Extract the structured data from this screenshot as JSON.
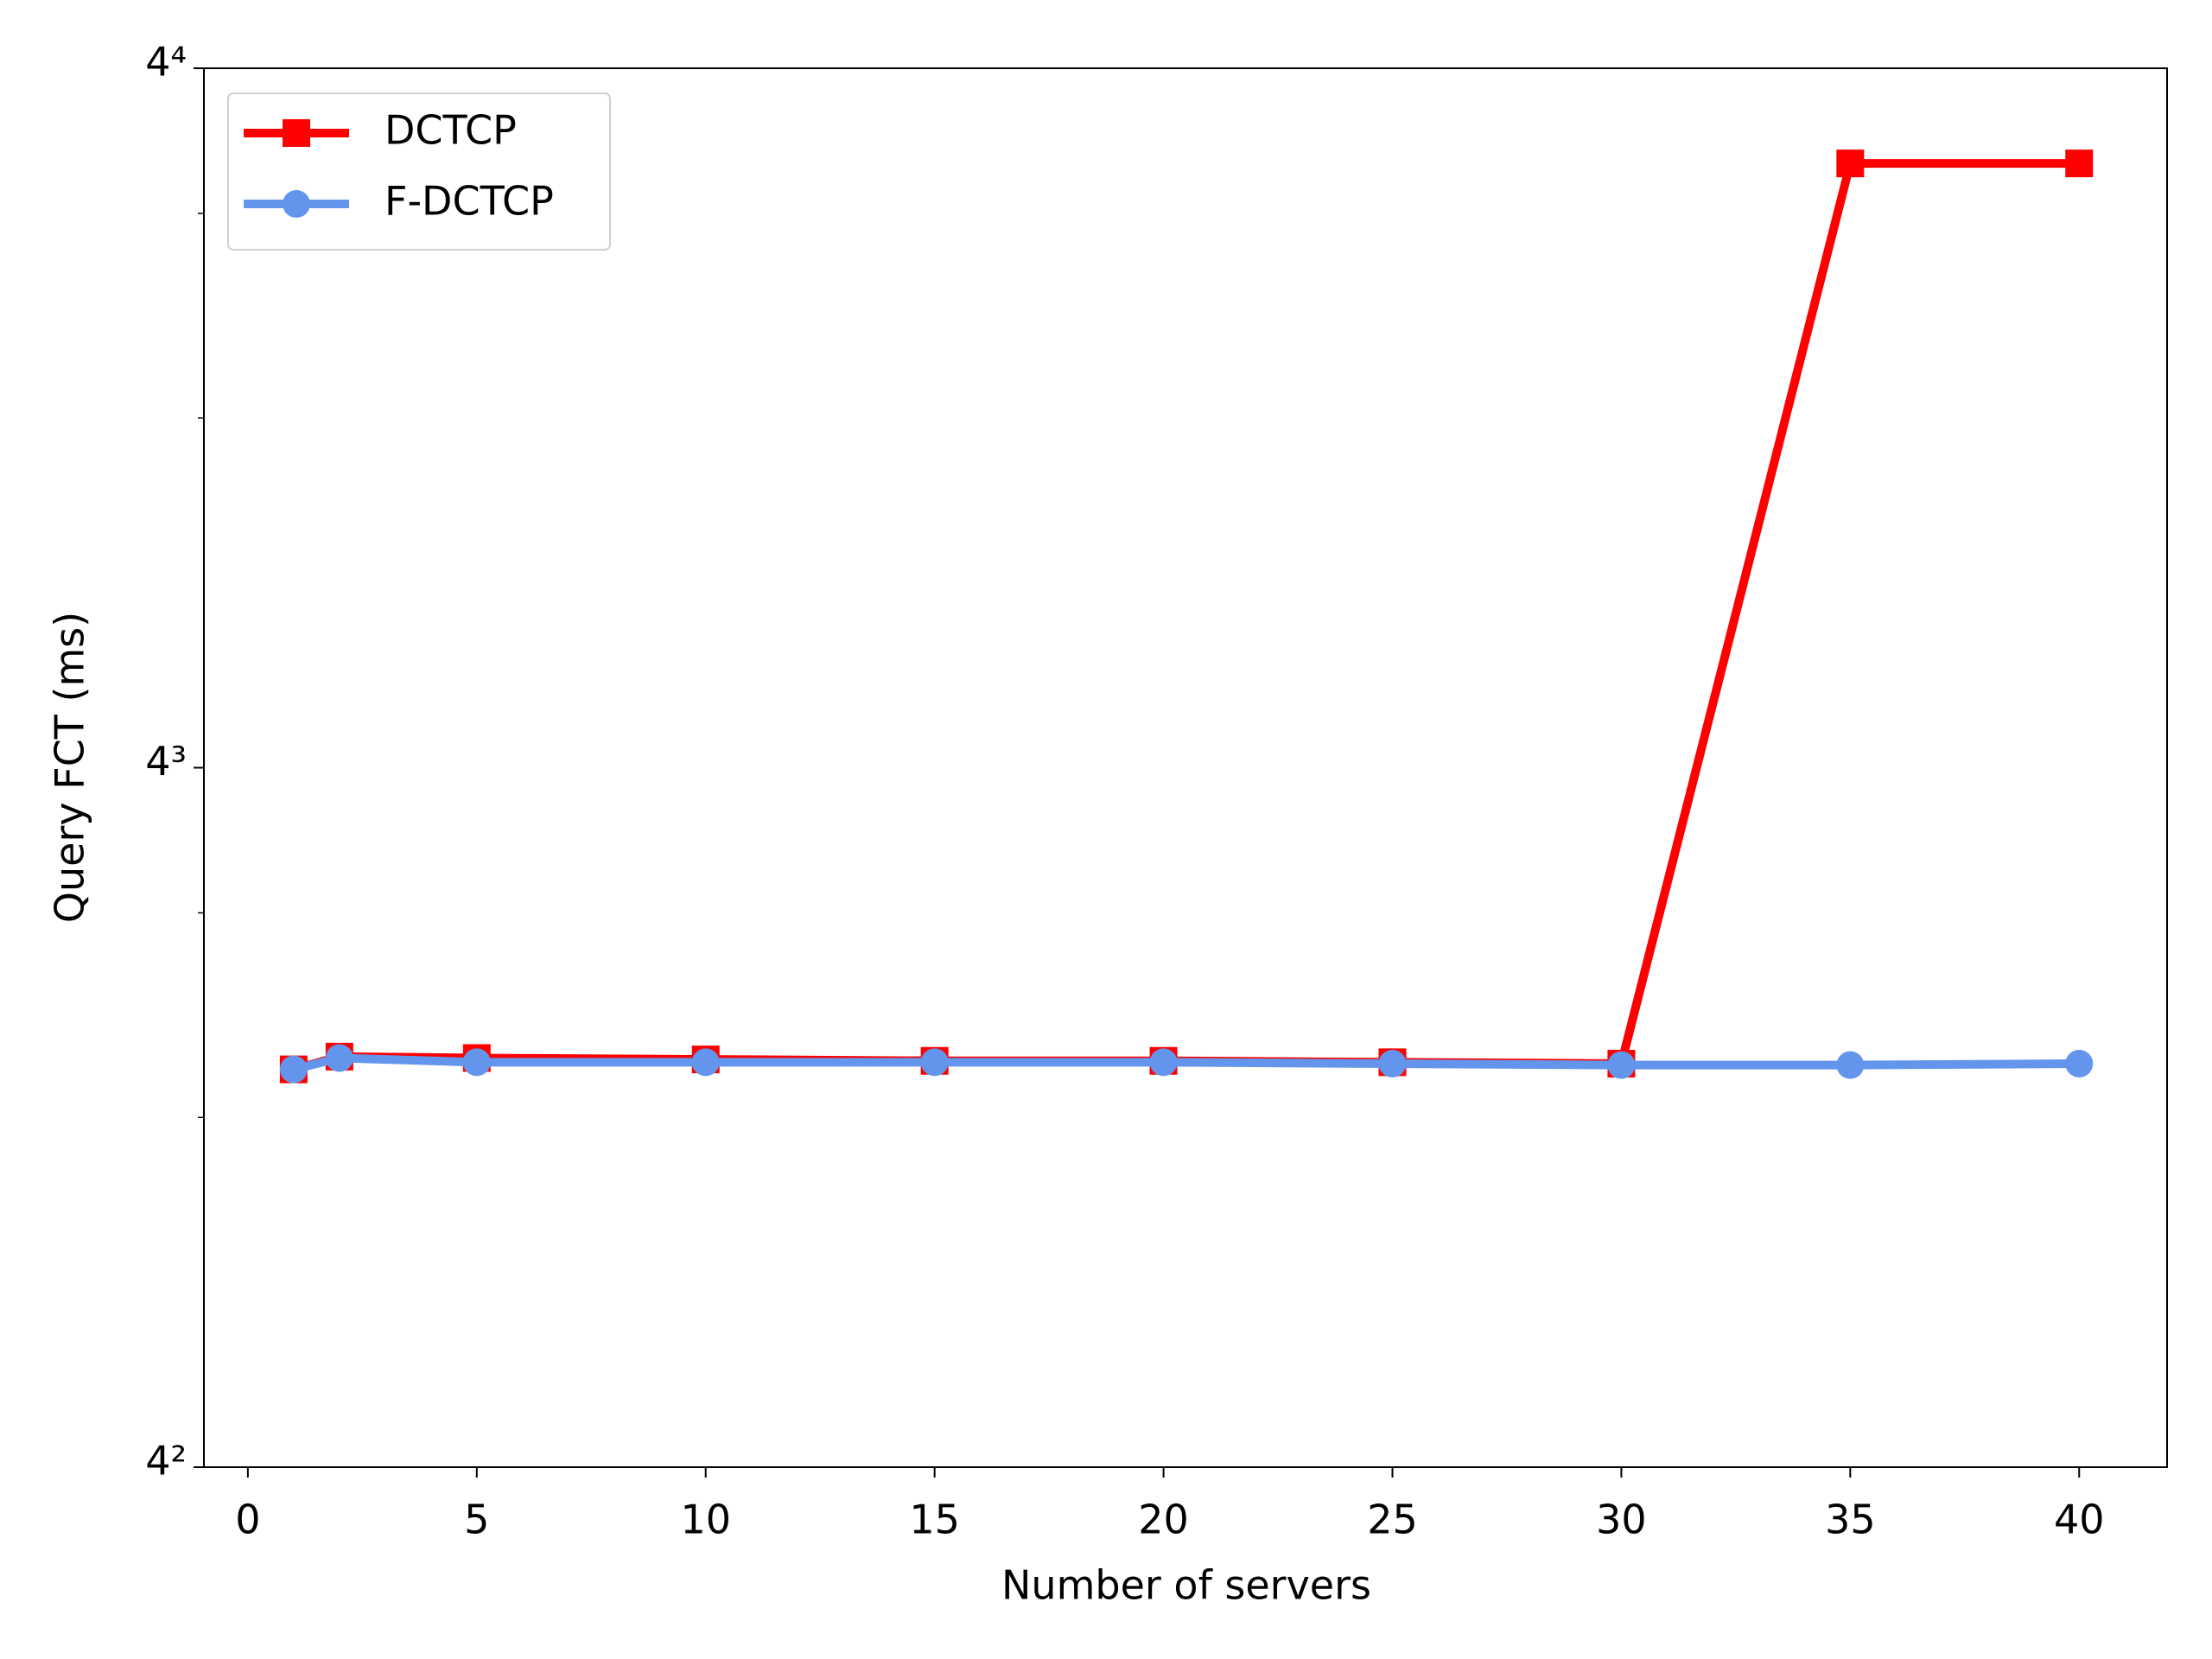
{
  "chart_data": {
    "type": "line",
    "x_label": "Number of servers",
    "y_label": "Query FCT (ms)",
    "x": [
      1,
      2,
      5,
      10,
      15,
      20,
      25,
      30,
      35,
      40
    ],
    "series": [
      {
        "name": "DCTCP",
        "color": "#ff0000",
        "marker": "square",
        "values": [
          35.2,
          36.1,
          36.0,
          35.9,
          35.8,
          35.8,
          35.7,
          35.6,
          212,
          212
        ]
      },
      {
        "name": "F-DCTCP",
        "color": "#6495ed",
        "marker": "circle",
        "values": [
          35.2,
          36.0,
          35.7,
          35.7,
          35.7,
          35.7,
          35.6,
          35.5,
          35.5,
          35.6
        ]
      }
    ],
    "xlim": [
      -0.96,
      41.92
    ],
    "xticks": [
      0,
      5,
      10,
      15,
      20,
      25,
      30,
      35,
      40
    ],
    "ylim": [
      16,
      256
    ],
    "y_log_base": 4,
    "yticks": [
      {
        "value": 16,
        "label": "4²"
      },
      {
        "value": 64,
        "label": "4³"
      },
      {
        "value": 256,
        "label": "4⁴"
      }
    ],
    "yminorticks": [
      32,
      48,
      128,
      192
    ],
    "legend": "upper left"
  }
}
